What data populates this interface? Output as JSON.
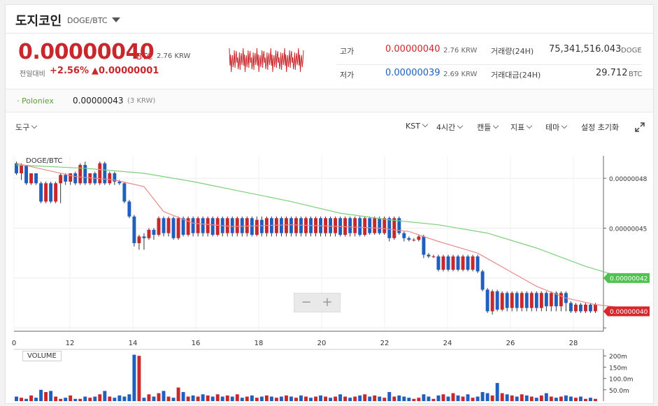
{
  "header": {
    "coin_name": "도지코인",
    "pair": "DOGE/BTC"
  },
  "price": {
    "main": "0.00000040",
    "unit": "BTC",
    "krw": "2.76 KRW",
    "change_label": "전일대비",
    "change_pct": "+2.56%",
    "change_abs": "▲0.00000001"
  },
  "stats": {
    "high_label": "고가",
    "high_value": "0.00000040",
    "high_krw": "2.76 KRW",
    "low_label": "저가",
    "low_value": "0.00000039",
    "low_krw": "2.69 KRW",
    "volume_label": "거래량(24H)",
    "volume_value": "75,341,516.043",
    "volume_unit": "DOGE",
    "amount_label": "거래대금(24H)",
    "amount_value": "29.712",
    "amount_unit": "BTC"
  },
  "exchange": {
    "name": "· Poloniex",
    "price": "0.00000043",
    "krw": "(3 KRW)"
  },
  "toolbar": {
    "tools": "도구",
    "timezone": "KST",
    "interval": "4시간",
    "chart_type": "캔들",
    "indicator": "지표",
    "theme": "테마",
    "reset": "설정 초기화"
  },
  "colors": {
    "up": "#c8272c",
    "down": "#1f5fbf",
    "ma_fast": "#e88a8a",
    "ma_slow": "#7ccf7c"
  },
  "chart_data": {
    "type": "candlestick",
    "title": "DOGE/BTC",
    "x_ticks": [
      "0",
      "12",
      "14",
      "16",
      "18",
      "20",
      "22",
      "24",
      "26",
      "28"
    ],
    "y_ticks": [
      "0.00000048",
      "0.00000045"
    ],
    "ylim": [
      3.88e-07,
      4.935e-07
    ],
    "last_price_tag": "0.00000040",
    "ma_tag": "0.00000042",
    "volume_title": "VOLUME",
    "volume_ticks": [
      "200m",
      "150m",
      "100.0m",
      "50.0m"
    ],
    "candles": [
      {
        "o": 0.489,
        "h": 0.49,
        "l": 0.482,
        "c": 0.483,
        "v": 20
      },
      {
        "o": 0.483,
        "h": 0.489,
        "l": 0.479,
        "c": 0.488,
        "v": 15
      },
      {
        "o": 0.488,
        "h": 0.489,
        "l": 0.476,
        "c": 0.477,
        "v": 10
      },
      {
        "o": 0.477,
        "h": 0.483,
        "l": 0.476,
        "c": 0.483,
        "v": 25
      },
      {
        "o": 0.483,
        "h": 0.483,
        "l": 0.476,
        "c": 0.477,
        "v": 15
      },
      {
        "o": 0.477,
        "h": 0.478,
        "l": 0.465,
        "c": 0.466,
        "v": 50
      },
      {
        "o": 0.466,
        "h": 0.478,
        "l": 0.465,
        "c": 0.477,
        "v": 40
      },
      {
        "o": 0.477,
        "h": 0.478,
        "l": 0.465,
        "c": 0.466,
        "v": 45
      },
      {
        "o": 0.466,
        "h": 0.478,
        "l": 0.465,
        "c": 0.477,
        "v": 20
      },
      {
        "o": 0.477,
        "h": 0.483,
        "l": 0.465,
        "c": 0.482,
        "v": 10
      },
      {
        "o": 0.482,
        "h": 0.483,
        "l": 0.476,
        "c": 0.478,
        "v": 15
      },
      {
        "o": 0.478,
        "h": 0.483,
        "l": 0.476,
        "c": 0.483,
        "v": 25
      },
      {
        "o": 0.483,
        "h": 0.484,
        "l": 0.476,
        "c": 0.477,
        "v": 10
      },
      {
        "o": 0.477,
        "h": 0.489,
        "l": 0.476,
        "c": 0.488,
        "v": 10
      },
      {
        "o": 0.488,
        "h": 0.49,
        "l": 0.476,
        "c": 0.477,
        "v": 20
      },
      {
        "o": 0.477,
        "h": 0.483,
        "l": 0.476,
        "c": 0.483,
        "v": 15
      },
      {
        "o": 0.483,
        "h": 0.484,
        "l": 0.476,
        "c": 0.477,
        "v": 20
      },
      {
        "o": 0.477,
        "h": 0.49,
        "l": 0.476,
        "c": 0.489,
        "v": 30
      },
      {
        "o": 0.489,
        "h": 0.49,
        "l": 0.476,
        "c": 0.477,
        "v": 45
      },
      {
        "o": 0.477,
        "h": 0.484,
        "l": 0.476,
        "c": 0.483,
        "v": 20
      },
      {
        "o": 0.483,
        "h": 0.484,
        "l": 0.476,
        "c": 0.478,
        "v": 15
      },
      {
        "o": 0.478,
        "h": 0.479,
        "l": 0.476,
        "c": 0.477,
        "v": 25
      },
      {
        "o": 0.477,
        "h": 0.478,
        "l": 0.465,
        "c": 0.466,
        "v": 20
      },
      {
        "o": 0.466,
        "h": 0.467,
        "l": 0.456,
        "c": 0.457,
        "v": 30
      },
      {
        "o": 0.457,
        "h": 0.458,
        "l": 0.439,
        "c": 0.441,
        "v": 205
      },
      {
        "o": 0.441,
        "h": 0.446,
        "l": 0.437,
        "c": 0.445,
        "v": 200
      },
      {
        "o": 0.445,
        "h": 0.447,
        "l": 0.437,
        "c": 0.444,
        "v": 15
      },
      {
        "o": 0.444,
        "h": 0.45,
        "l": 0.443,
        "c": 0.449,
        "v": 30
      },
      {
        "o": 0.449,
        "h": 0.45,
        "l": 0.443,
        "c": 0.446,
        "v": 20
      },
      {
        "o": 0.446,
        "h": 0.457,
        "l": 0.445,
        "c": 0.456,
        "v": 35
      },
      {
        "o": 0.456,
        "h": 0.457,
        "l": 0.445,
        "c": 0.447,
        "v": 45
      },
      {
        "o": 0.447,
        "h": 0.457,
        "l": 0.445,
        "c": 0.456,
        "v": 20
      },
      {
        "o": 0.456,
        "h": 0.457,
        "l": 0.443,
        "c": 0.444,
        "v": 15
      },
      {
        "o": 0.444,
        "h": 0.457,
        "l": 0.443,
        "c": 0.456,
        "v": 60
      },
      {
        "o": 0.456,
        "h": 0.457,
        "l": 0.445,
        "c": 0.446,
        "v": 40
      },
      {
        "o": 0.446,
        "h": 0.457,
        "l": 0.445,
        "c": 0.456,
        "v": 20
      },
      {
        "o": 0.456,
        "h": 0.457,
        "l": 0.445,
        "c": 0.447,
        "v": 25
      },
      {
        "o": 0.447,
        "h": 0.457,
        "l": 0.445,
        "c": 0.456,
        "v": 20
      },
      {
        "o": 0.456,
        "h": 0.457,
        "l": 0.445,
        "c": 0.447,
        "v": 30
      },
      {
        "o": 0.447,
        "h": 0.457,
        "l": 0.445,
        "c": 0.456,
        "v": 25
      },
      {
        "o": 0.456,
        "h": 0.457,
        "l": 0.445,
        "c": 0.446,
        "v": 20
      },
      {
        "o": 0.446,
        "h": 0.457,
        "l": 0.445,
        "c": 0.456,
        "v": 30
      },
      {
        "o": 0.456,
        "h": 0.457,
        "l": 0.445,
        "c": 0.447,
        "v": 20
      },
      {
        "o": 0.447,
        "h": 0.457,
        "l": 0.445,
        "c": 0.456,
        "v": 25
      },
      {
        "o": 0.456,
        "h": 0.457,
        "l": 0.445,
        "c": 0.447,
        "v": 20
      },
      {
        "o": 0.447,
        "h": 0.457,
        "l": 0.445,
        "c": 0.456,
        "v": 30
      },
      {
        "o": 0.456,
        "h": 0.457,
        "l": 0.445,
        "c": 0.447,
        "v": 15
      },
      {
        "o": 0.447,
        "h": 0.457,
        "l": 0.445,
        "c": 0.456,
        "v": 20
      },
      {
        "o": 0.456,
        "h": 0.457,
        "l": 0.445,
        "c": 0.446,
        "v": 25
      },
      {
        "o": 0.446,
        "h": 0.457,
        "l": 0.445,
        "c": 0.455,
        "v": 15
      },
      {
        "o": 0.455,
        "h": 0.457,
        "l": 0.445,
        "c": 0.447,
        "v": 20
      },
      {
        "o": 0.447,
        "h": 0.457,
        "l": 0.445,
        "c": 0.456,
        "v": 25
      },
      {
        "o": 0.456,
        "h": 0.457,
        "l": 0.445,
        "c": 0.447,
        "v": 20
      },
      {
        "o": 0.447,
        "h": 0.457,
        "l": 0.445,
        "c": 0.456,
        "v": 15
      },
      {
        "o": 0.456,
        "h": 0.457,
        "l": 0.445,
        "c": 0.447,
        "v": 20
      },
      {
        "o": 0.447,
        "h": 0.457,
        "l": 0.445,
        "c": 0.456,
        "v": 25
      },
      {
        "o": 0.456,
        "h": 0.457,
        "l": 0.445,
        "c": 0.447,
        "v": 20
      },
      {
        "o": 0.447,
        "h": 0.457,
        "l": 0.445,
        "c": 0.456,
        "v": 15
      },
      {
        "o": 0.456,
        "h": 0.457,
        "l": 0.445,
        "c": 0.447,
        "v": 25
      },
      {
        "o": 0.447,
        "h": 0.457,
        "l": 0.445,
        "c": 0.456,
        "v": 20
      },
      {
        "o": 0.456,
        "h": 0.457,
        "l": 0.445,
        "c": 0.447,
        "v": 15
      },
      {
        "o": 0.447,
        "h": 0.457,
        "l": 0.445,
        "c": 0.456,
        "v": 20
      },
      {
        "o": 0.456,
        "h": 0.457,
        "l": 0.445,
        "c": 0.447,
        "v": 25
      },
      {
        "o": 0.447,
        "h": 0.457,
        "l": 0.445,
        "c": 0.456,
        "v": 20
      },
      {
        "o": 0.456,
        "h": 0.457,
        "l": 0.445,
        "c": 0.447,
        "v": 15
      },
      {
        "o": 0.447,
        "h": 0.457,
        "l": 0.445,
        "c": 0.456,
        "v": 20
      },
      {
        "o": 0.456,
        "h": 0.457,
        "l": 0.445,
        "c": 0.446,
        "v": 30
      },
      {
        "o": 0.446,
        "h": 0.457,
        "l": 0.445,
        "c": 0.456,
        "v": 20
      },
      {
        "o": 0.456,
        "h": 0.457,
        "l": 0.445,
        "c": 0.447,
        "v": 15
      },
      {
        "o": 0.447,
        "h": 0.457,
        "l": 0.445,
        "c": 0.456,
        "v": 20
      },
      {
        "o": 0.456,
        "h": 0.457,
        "l": 0.445,
        "c": 0.446,
        "v": 25
      },
      {
        "o": 0.446,
        "h": 0.457,
        "l": 0.445,
        "c": 0.456,
        "v": 30
      },
      {
        "o": 0.456,
        "h": 0.457,
        "l": 0.446,
        "c": 0.447,
        "v": 20
      },
      {
        "o": 0.447,
        "h": 0.457,
        "l": 0.446,
        "c": 0.456,
        "v": 25
      },
      {
        "o": 0.456,
        "h": 0.457,
        "l": 0.446,
        "c": 0.447,
        "v": 20
      },
      {
        "o": 0.447,
        "h": 0.457,
        "l": 0.446,
        "c": 0.456,
        "v": 15
      },
      {
        "o": 0.456,
        "h": 0.457,
        "l": 0.442,
        "c": 0.444,
        "v": 40
      },
      {
        "o": 0.444,
        "h": 0.457,
        "l": 0.443,
        "c": 0.456,
        "v": 20
      },
      {
        "o": 0.456,
        "h": 0.457,
        "l": 0.446,
        "c": 0.447,
        "v": 25
      },
      {
        "o": 0.447,
        "h": 0.448,
        "l": 0.442,
        "c": 0.444,
        "v": 20
      },
      {
        "o": 0.444,
        "h": 0.445,
        "l": 0.442,
        "c": 0.443,
        "v": 15
      },
      {
        "o": 0.443,
        "h": 0.444,
        "l": 0.442,
        "c": 0.443,
        "v": 10
      },
      {
        "o": 0.443,
        "h": 0.446,
        "l": 0.442,
        "c": 0.445,
        "v": 15
      },
      {
        "o": 0.445,
        "h": 0.446,
        "l": 0.432,
        "c": 0.434,
        "v": 30
      },
      {
        "o": 0.434,
        "h": 0.435,
        "l": 0.432,
        "c": 0.433,
        "v": 20
      },
      {
        "o": 0.433,
        "h": 0.434,
        "l": 0.432,
        "c": 0.433,
        "v": 10
      },
      {
        "o": 0.433,
        "h": 0.434,
        "l": 0.424,
        "c": 0.425,
        "v": 25
      },
      {
        "o": 0.425,
        "h": 0.434,
        "l": 0.424,
        "c": 0.433,
        "v": 30
      },
      {
        "o": 0.433,
        "h": 0.434,
        "l": 0.424,
        "c": 0.425,
        "v": 20
      },
      {
        "o": 0.425,
        "h": 0.434,
        "l": 0.424,
        "c": 0.433,
        "v": 35
      },
      {
        "o": 0.433,
        "h": 0.434,
        "l": 0.424,
        "c": 0.425,
        "v": 25
      },
      {
        "o": 0.425,
        "h": 0.434,
        "l": 0.424,
        "c": 0.433,
        "v": 20
      },
      {
        "o": 0.433,
        "h": 0.434,
        "l": 0.424,
        "c": 0.425,
        "v": 30
      },
      {
        "o": 0.425,
        "h": 0.434,
        "l": 0.424,
        "c": 0.433,
        "v": 15
      },
      {
        "o": 0.433,
        "h": 0.434,
        "l": 0.423,
        "c": 0.424,
        "v": 20
      },
      {
        "o": 0.424,
        "h": 0.425,
        "l": 0.412,
        "c": 0.413,
        "v": 40
      },
      {
        "o": 0.413,
        "h": 0.414,
        "l": 0.399,
        "c": 0.4,
        "v": 35
      },
      {
        "o": 0.4,
        "h": 0.413,
        "l": 0.398,
        "c": 0.412,
        "v": 25
      },
      {
        "o": 0.412,
        "h": 0.413,
        "l": 0.4,
        "c": 0.401,
        "v": 80
      },
      {
        "o": 0.401,
        "h": 0.412,
        "l": 0.4,
        "c": 0.411,
        "v": 35
      },
      {
        "o": 0.411,
        "h": 0.412,
        "l": 0.4,
        "c": 0.402,
        "v": 30
      },
      {
        "o": 0.402,
        "h": 0.412,
        "l": 0.4,
        "c": 0.411,
        "v": 25
      },
      {
        "o": 0.411,
        "h": 0.412,
        "l": 0.4,
        "c": 0.402,
        "v": 20
      },
      {
        "o": 0.402,
        "h": 0.412,
        "l": 0.4,
        "c": 0.411,
        "v": 30
      },
      {
        "o": 0.411,
        "h": 0.412,
        "l": 0.4,
        "c": 0.402,
        "v": 25
      },
      {
        "o": 0.402,
        "h": 0.412,
        "l": 0.4,
        "c": 0.411,
        "v": 20
      },
      {
        "o": 0.411,
        "h": 0.412,
        "l": 0.4,
        "c": 0.402,
        "v": 15
      },
      {
        "o": 0.402,
        "h": 0.412,
        "l": 0.4,
        "c": 0.411,
        "v": 25
      },
      {
        "o": 0.411,
        "h": 0.412,
        "l": 0.4,
        "c": 0.403,
        "v": 35
      },
      {
        "o": 0.403,
        "h": 0.412,
        "l": 0.4,
        "c": 0.411,
        "v": 20
      },
      {
        "o": 0.411,
        "h": 0.412,
        "l": 0.4,
        "c": 0.403,
        "v": 15
      },
      {
        "o": 0.403,
        "h": 0.412,
        "l": 0.4,
        "c": 0.411,
        "v": 20
      },
      {
        "o": 0.411,
        "h": 0.412,
        "l": 0.4,
        "c": 0.405,
        "v": 25
      },
      {
        "o": 0.405,
        "h": 0.406,
        "l": 0.399,
        "c": 0.4,
        "v": 20
      },
      {
        "o": 0.4,
        "h": 0.405,
        "l": 0.399,
        "c": 0.404,
        "v": 15
      },
      {
        "o": 0.404,
        "h": 0.405,
        "l": 0.399,
        "c": 0.4,
        "v": 20
      },
      {
        "o": 0.4,
        "h": 0.405,
        "l": 0.399,
        "c": 0.404,
        "v": 10
      },
      {
        "o": 0.404,
        "h": 0.405,
        "l": 0.399,
        "c": 0.4,
        "v": 15
      },
      {
        "o": 0.4,
        "h": 0.405,
        "l": 0.399,
        "c": 0.404,
        "v": 10
      }
    ],
    "ma_fast": [
      [
        0,
        0.489
      ],
      [
        6,
        0.485
      ],
      [
        12,
        0.481
      ],
      [
        20,
        0.479
      ],
      [
        26,
        0.475
      ],
      [
        30,
        0.46
      ],
      [
        36,
        0.453
      ],
      [
        44,
        0.451
      ],
      [
        56,
        0.452
      ],
      [
        66,
        0.451
      ],
      [
        74,
        0.45
      ],
      [
        80,
        0.448
      ],
      [
        86,
        0.442
      ],
      [
        94,
        0.435
      ],
      [
        100,
        0.425
      ],
      [
        106,
        0.415
      ],
      [
        112,
        0.408
      ],
      [
        118,
        0.404
      ],
      [
        124,
        0.402
      ]
    ],
    "ma_slow": [
      [
        0,
        0.488
      ],
      [
        14,
        0.486
      ],
      [
        26,
        0.483
      ],
      [
        36,
        0.478
      ],
      [
        46,
        0.472
      ],
      [
        56,
        0.466
      ],
      [
        66,
        0.459
      ],
      [
        76,
        0.455
      ],
      [
        86,
        0.452
      ],
      [
        96,
        0.447
      ],
      [
        106,
        0.438
      ],
      [
        116,
        0.427
      ],
      [
        124,
        0.42
      ]
    ]
  }
}
